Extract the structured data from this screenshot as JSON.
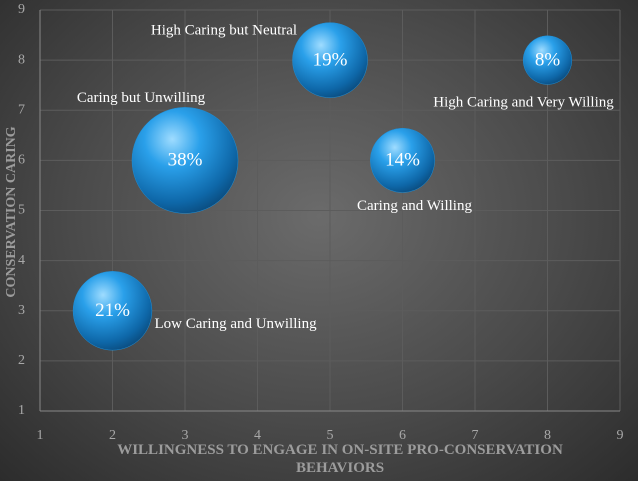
{
  "chart_data": {
    "type": "bubble",
    "xlabel": "WILLINGNESS TO ENGAGE IN ON-SITE PRO-CONSERVATION BEHAVIORS",
    "ylabel": "CONSERVATION CARING",
    "x": [
      2,
      3,
      5,
      6,
      8
    ],
    "y": [
      3,
      6,
      8,
      6,
      8
    ],
    "sizes": [
      21,
      38,
      19,
      14,
      8
    ],
    "value_labels": [
      "21%",
      "38%",
      "19%",
      "14%",
      "8%"
    ],
    "point_labels": [
      "Low Caring and Unwilling",
      "Caring but Unwilling",
      "High Caring but Neutral",
      "Caring and Willing",
      "High Caring and Very Willing"
    ],
    "color": "#1f8fd6",
    "xlim": [
      1,
      9
    ],
    "xticks": [
      1,
      2,
      3,
      4,
      5,
      6,
      7,
      8,
      9
    ],
    "ylim": [
      1,
      9
    ],
    "yticks": [
      1,
      2,
      3,
      4,
      5,
      6,
      7,
      8,
      9
    ],
    "grid": true
  }
}
